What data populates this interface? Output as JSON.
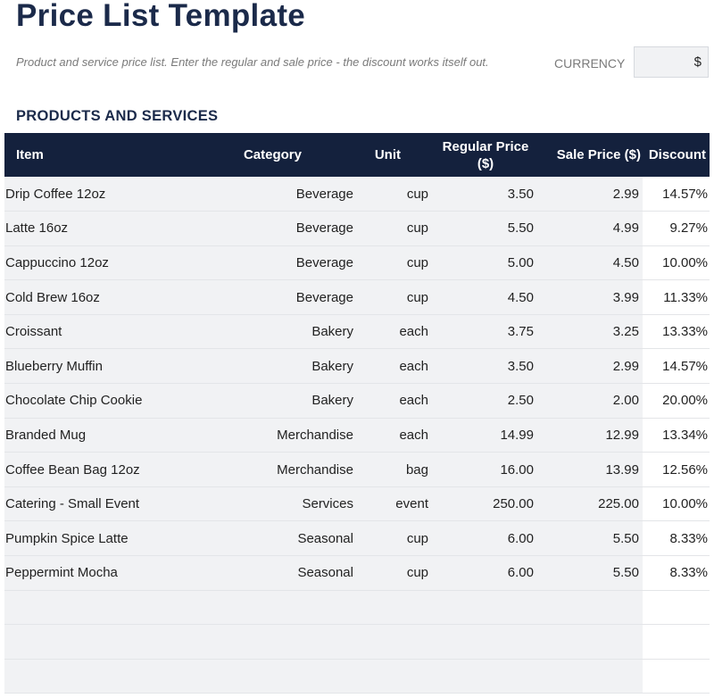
{
  "page": {
    "title": "Price List Template",
    "subtitle": "Product and service price list. Enter the regular and sale price - the discount works itself out.",
    "currency_label": "CURRENCY",
    "currency_value": "$",
    "section_heading": "PRODUCTS AND SERVICES"
  },
  "table": {
    "headers": {
      "item": "Item",
      "category": "Category",
      "unit": "Unit",
      "regular_price": "Regular Price ($)",
      "sale_price": "Sale Price ($)",
      "discount": "Discount"
    },
    "rows": [
      {
        "item": "Drip Coffee 12oz",
        "category": "Beverage",
        "unit": "cup",
        "regular": "3.50",
        "sale": "2.99",
        "discount": "14.57%"
      },
      {
        "item": "Latte 16oz",
        "category": "Beverage",
        "unit": "cup",
        "regular": "5.50",
        "sale": "4.99",
        "discount": "9.27%"
      },
      {
        "item": "Cappuccino 12oz",
        "category": "Beverage",
        "unit": "cup",
        "regular": "5.00",
        "sale": "4.50",
        "discount": "10.00%"
      },
      {
        "item": "Cold Brew 16oz",
        "category": "Beverage",
        "unit": "cup",
        "regular": "4.50",
        "sale": "3.99",
        "discount": "11.33%"
      },
      {
        "item": "Croissant",
        "category": "Bakery",
        "unit": "each",
        "regular": "3.75",
        "sale": "3.25",
        "discount": "13.33%"
      },
      {
        "item": "Blueberry Muffin",
        "category": "Bakery",
        "unit": "each",
        "regular": "3.50",
        "sale": "2.99",
        "discount": "14.57%"
      },
      {
        "item": "Chocolate Chip Cookie",
        "category": "Bakery",
        "unit": "each",
        "regular": "2.50",
        "sale": "2.00",
        "discount": "20.00%"
      },
      {
        "item": "Branded Mug",
        "category": "Merchandise",
        "unit": "each",
        "regular": "14.99",
        "sale": "12.99",
        "discount": "13.34%"
      },
      {
        "item": "Coffee Bean Bag 12oz",
        "category": "Merchandise",
        "unit": "bag",
        "regular": "16.00",
        "sale": "13.99",
        "discount": "12.56%"
      },
      {
        "item": "Catering - Small Event",
        "category": "Services",
        "unit": "event",
        "regular": "250.00",
        "sale": "225.00",
        "discount": "10.00%"
      },
      {
        "item": "Pumpkin Spice Latte",
        "category": "Seasonal",
        "unit": "cup",
        "regular": "6.00",
        "sale": "5.50",
        "discount": "8.33%"
      },
      {
        "item": "Peppermint Mocha",
        "category": "Seasonal",
        "unit": "cup",
        "regular": "6.00",
        "sale": "5.50",
        "discount": "8.33%"
      },
      {
        "item": "",
        "category": "",
        "unit": "",
        "regular": "",
        "sale": "",
        "discount": ""
      },
      {
        "item": "",
        "category": "",
        "unit": "",
        "regular": "",
        "sale": "",
        "discount": ""
      },
      {
        "item": "",
        "category": "",
        "unit": "",
        "regular": "",
        "sale": "",
        "discount": ""
      }
    ]
  },
  "colors": {
    "header_bg": "#14213d",
    "title": "#1b2a4a",
    "input_cell_bg": "#f1f2f4",
    "calc_cell_bg": "#ffffff"
  }
}
